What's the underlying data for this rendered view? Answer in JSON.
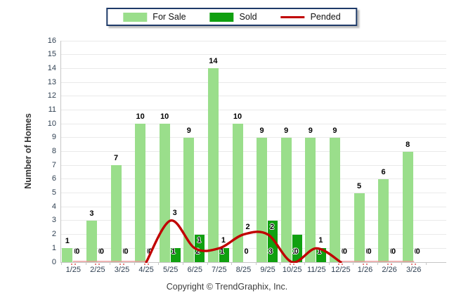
{
  "legend": {
    "items": [
      {
        "label": "For Sale",
        "color": "#9ADE8B",
        "type": "swatch"
      },
      {
        "label": "Sold",
        "color": "#10A010",
        "type": "swatch"
      },
      {
        "label": "Pended",
        "color": "#C00000",
        "type": "line"
      }
    ]
  },
  "chart_data": {
    "type": "bar",
    "title": "",
    "xlabel": "",
    "ylabel": "Number of Homes",
    "categories": [
      "1/25",
      "2/25",
      "3/25",
      "4/25",
      "5/25",
      "6/25",
      "7/25",
      "8/25",
      "9/25",
      "10/25",
      "11/25",
      "12/25",
      "1/26",
      "2/26",
      "3/26"
    ],
    "series": [
      {
        "name": "For Sale",
        "type": "bar",
        "color": "#9ADE8B",
        "values": [
          1,
          3,
          7,
          10,
          10,
          9,
          14,
          10,
          9,
          9,
          9,
          9,
          5,
          6,
          8
        ]
      },
      {
        "name": "Sold",
        "type": "bar",
        "color": "#10A010",
        "values": [
          0,
          0,
          0,
          0,
          1,
          2,
          1,
          0,
          3,
          2,
          1,
          0,
          0,
          0,
          0
        ]
      },
      {
        "name": "Pended",
        "type": "line",
        "color": "#C00000",
        "values": [
          0,
          0,
          0,
          0,
          3,
          1,
          1,
          2,
          2,
          0,
          1,
          0,
          0,
          0,
          0
        ]
      }
    ],
    "ylim": [
      0,
      16
    ],
    "yticks": [
      0,
      1,
      2,
      3,
      4,
      5,
      6,
      7,
      8,
      9,
      10,
      11,
      12,
      13,
      14,
      15,
      16
    ],
    "grid": true,
    "legend_position": "top",
    "line_zero_color": "#E89B9B"
  },
  "footer": {
    "text": "Copyright © TrendGraphix, Inc."
  }
}
